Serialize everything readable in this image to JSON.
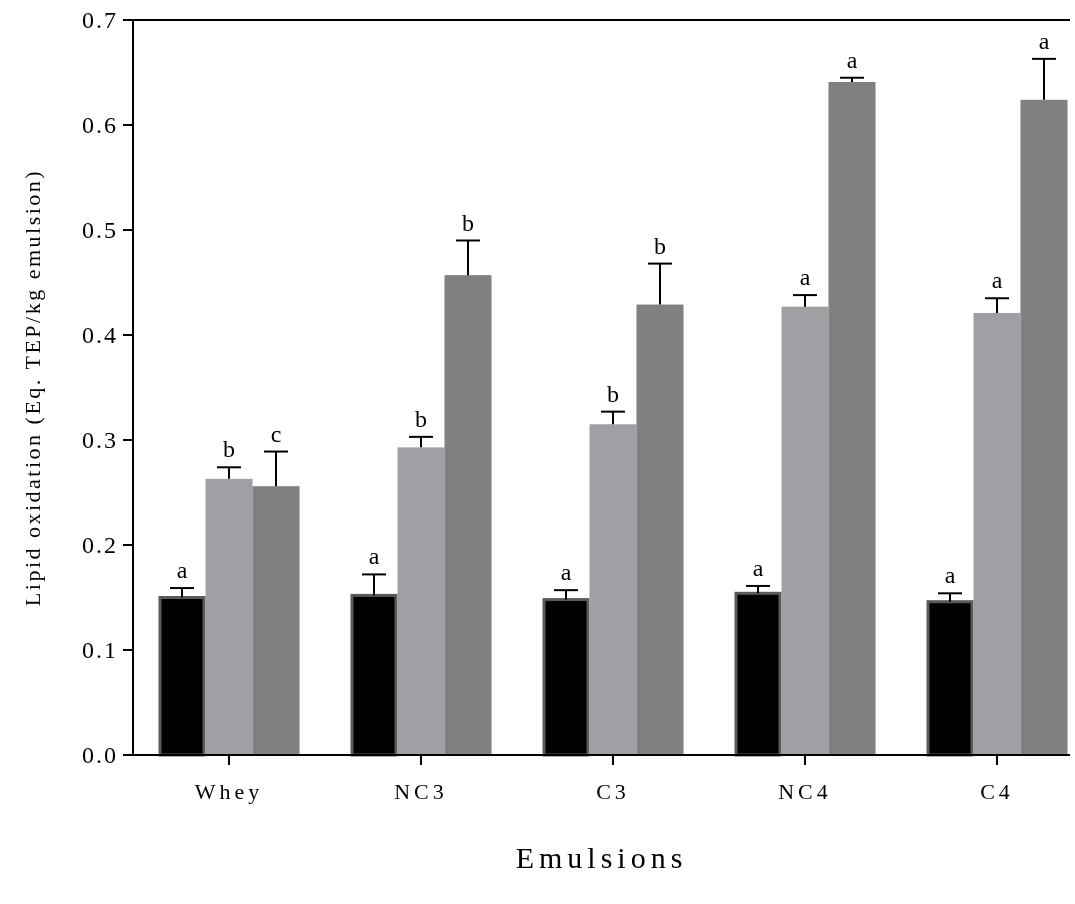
{
  "chart_data": {
    "type": "bar",
    "xlabel": "Emulsions",
    "ylabel": "Lipid oxidation (Eq. TEP/kg emulsion)",
    "categories": [
      "Whey",
      "NC3",
      "C3",
      "NC4",
      "C4"
    ],
    "series": [
      {
        "color": "#000000",
        "values": [
          0.15,
          0.152,
          0.148,
          0.154,
          0.146
        ],
        "errors": [
          0.009,
          0.02,
          0.009,
          0.007,
          0.008
        ]
      },
      {
        "color": "#a09fa3",
        "values": [
          0.263,
          0.293,
          0.315,
          0.427,
          0.421
        ],
        "errors": [
          0.011,
          0.01,
          0.012,
          0.011,
          0.014
        ]
      },
      {
        "color": "#808080",
        "values": [
          0.256,
          0.457,
          0.429,
          0.641,
          0.624
        ],
        "errors": [
          0.033,
          0.033,
          0.039,
          0.004,
          0.039
        ]
      }
    ],
    "ylim": [
      0,
      0.7
    ],
    "yticks": [
      {
        "value": 0,
        "label": "0.0"
      },
      0.1,
      0.2,
      0.3,
      0.4,
      0.5,
      0.6,
      0.7
    ],
    "grid": false,
    "annotations": [
      "a",
      "b",
      "c",
      "a",
      "b",
      "b",
      "a",
      "b",
      "b",
      "a",
      "a",
      "a",
      "a",
      "a",
      "a"
    ]
  }
}
